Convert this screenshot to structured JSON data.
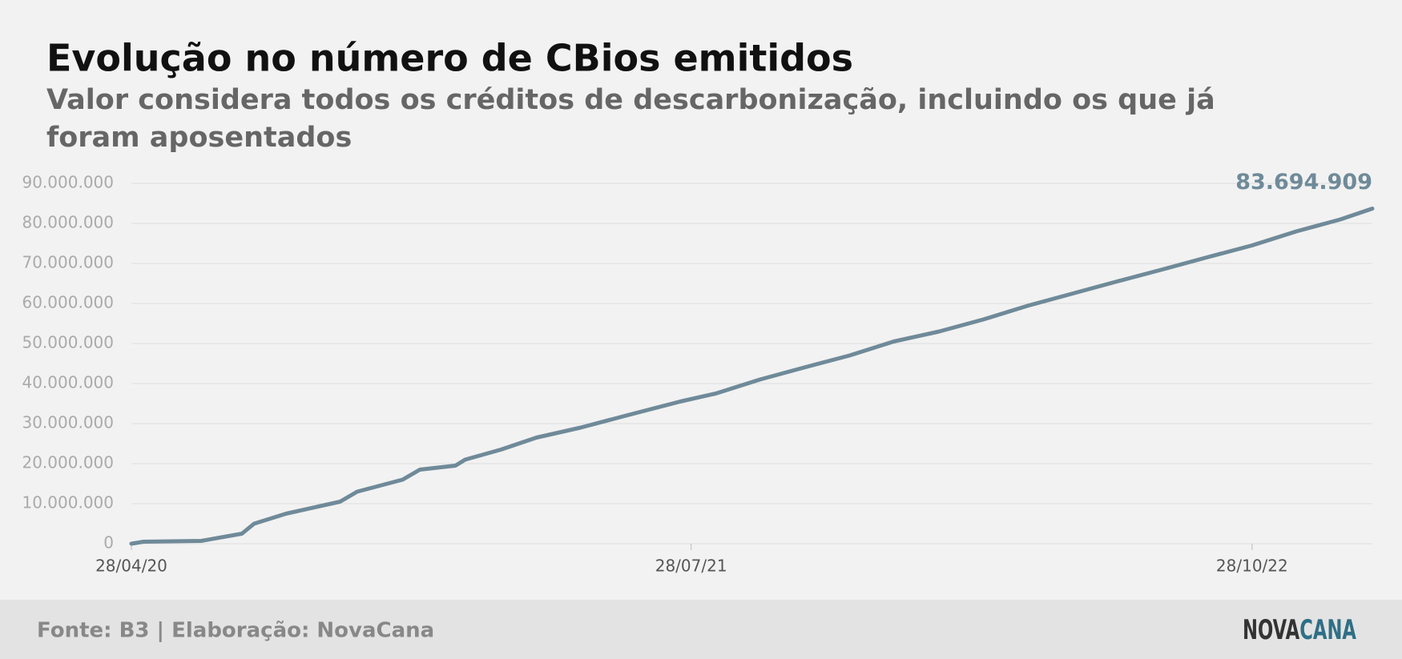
{
  "chart_data": {
    "type": "line",
    "title": "Evolução no número de CBios emitidos",
    "subtitle": [
      "Valor considera todos os créditos de descarbonização, incluindo os que já",
      "foram aposentados"
    ],
    "x": [
      "2020-04-28",
      "2020-05-08",
      "2020-06-24",
      "2020-07-27",
      "2020-08-06",
      "2020-09-01",
      "2020-10-15",
      "2020-10-29",
      "2020-12-05",
      "2020-12-19",
      "2021-01-17",
      "2021-01-25",
      "2021-02-23",
      "2021-03-24",
      "2021-04-29",
      "2021-06-05",
      "2021-07-19",
      "2021-08-17",
      "2021-09-22",
      "2021-10-28",
      "2021-12-04",
      "2022-01-09",
      "2022-02-15",
      "2022-03-23",
      "2022-04-29",
      "2022-06-04",
      "2022-07-10",
      "2022-08-16",
      "2022-09-21",
      "2022-10-28",
      "2022-12-03",
      "2023-01-08",
      "2023-02-03"
    ],
    "series": [
      {
        "name": "CBios emitidos",
        "color": "#6f8a99",
        "values": [
          0,
          500000,
          700000,
          2500000,
          5000000,
          7500000,
          10500000,
          13000000,
          16000000,
          18500000,
          19500000,
          21000000,
          23500000,
          26500000,
          29000000,
          32000000,
          35500000,
          37500000,
          41000000,
          44000000,
          47000000,
          50500000,
          53000000,
          56000000,
          59500000,
          62500000,
          65500000,
          68500000,
          71500000,
          74500000,
          78000000,
          81000000,
          83694909
        ],
        "value_labels": [
          null,
          null,
          null,
          null,
          null,
          null,
          null,
          null,
          null,
          null,
          null,
          null,
          null,
          null,
          null,
          null,
          null,
          null,
          null,
          null,
          null,
          null,
          null,
          null,
          null,
          null,
          null,
          null,
          null,
          null,
          null,
          null,
          "83.694.909"
        ]
      }
    ],
    "xlim": [
      "2020-04-28",
      "2023-02-03"
    ],
    "xticks": [
      {
        "value": "2020-04-28",
        "label": "28/04/20"
      },
      {
        "value": "2021-07-28",
        "label": "28/07/21"
      },
      {
        "value": "2022-10-28",
        "label": "28/10/22"
      }
    ],
    "ylim": [
      0,
      90000000
    ],
    "yticks": [
      0,
      {
        "value": 10000000,
        "label": "10.000.000"
      },
      {
        "value": 20000000,
        "label": "20.000.000"
      },
      {
        "value": 30000000,
        "label": "30.000.000"
      },
      {
        "value": 40000000,
        "label": "40.000.000"
      },
      {
        "value": 50000000,
        "label": "50.000.000"
      },
      {
        "value": 60000000,
        "label": "60.000.000"
      },
      {
        "value": 70000000,
        "label": "70.000.000"
      },
      {
        "value": 80000000,
        "label": "80.000.000"
      },
      {
        "value": 90000000,
        "label": "90.000.000"
      }
    ],
    "grid": true
  },
  "footer": {
    "source": "Fonte: B3 | Elaboração: NovaCana",
    "logo": [
      "NOVA",
      "CANA"
    ]
  }
}
